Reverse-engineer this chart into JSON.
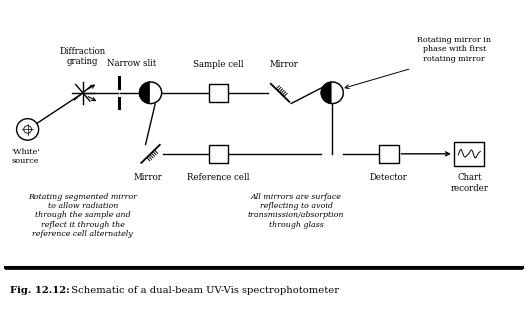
{
  "bg_color": "#ffffff",
  "fig_width": 5.27,
  "fig_height": 3.16,
  "labels": {
    "diffraction_grating": "Diffraction\ngrating",
    "narrow_slit": "Narrow slit",
    "sample_cell": "Sample cell",
    "mirror_top": "Mirror",
    "rotating_mirror_label": "Rotating mirror in\nphase with first\nrotating mirror",
    "mirror_bottom": "Mirror",
    "reference_cell": "Reference cell",
    "detector": "Detector",
    "chart_recorder": "Chart\nrecorder",
    "white_source": "'White'\nsource",
    "rotating_seg": "Rotating segmented mirror\nto allow radiation\nthrough the sample and\nreflect it through the\nreference cell alternately",
    "all_mirrors": "All mirrors are surface\nreflecting to avoid\ntransmission/absorption\nthrough glass",
    "fig_caption_bold": "Fig. 12.12:",
    "fig_caption_rest": "  Schematic of a dual-beam UV-Vis spectrophotometer"
  }
}
